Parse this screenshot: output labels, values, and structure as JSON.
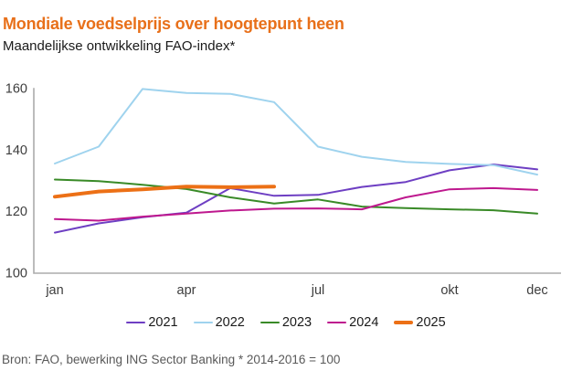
{
  "header": {
    "title": "Mondiale voedselprijs over hoogtepunt heen",
    "subtitle": "Maandelijkse ontwikkeling FAO-index*"
  },
  "footer": {
    "source": "Bron: FAO, bewerking ING Sector Banking * 2014-2016 = 100"
  },
  "colors": {
    "title": "#E8701A",
    "axis": "#ABABAB",
    "tick_text": "#3D3D3D",
    "footer_text": "#595959",
    "background": "#FFFFFF"
  },
  "chart_data": {
    "type": "line",
    "title": "Mondiale voedselprijs over hoogtepunt heen",
    "subtitle": "Maandelijkse ontwikkeling FAO-index*",
    "xlabel": "",
    "ylabel": "",
    "x": [
      "jan",
      "feb",
      "mrt",
      "apr",
      "mei",
      "jun",
      "jul",
      "aug",
      "sep",
      "okt",
      "nov",
      "dec"
    ],
    "x_tick_labels_shown": [
      "jan",
      "apr",
      "jul",
      "okt",
      "dec"
    ],
    "ylim": [
      100,
      160
    ],
    "yticks": [
      100,
      120,
      140,
      160
    ],
    "grid": false,
    "legend_position": "bottom",
    "series": [
      {
        "name": "2021",
        "color": "#6E3FC3",
        "width": 2,
        "values": [
          113.0,
          116.0,
          118.0,
          119.5,
          127.5,
          125.0,
          125.3,
          127.9,
          129.5,
          133.3,
          135.2,
          133.6
        ]
      },
      {
        "name": "2022",
        "color": "#9FD3EE",
        "width": 2,
        "values": [
          135.5,
          141.0,
          159.8,
          158.5,
          158.2,
          155.5,
          141.0,
          137.7,
          136.0,
          135.4,
          135.0,
          131.9
        ]
      },
      {
        "name": "2023",
        "color": "#398A27",
        "width": 2,
        "values": [
          130.3,
          129.8,
          128.6,
          127.2,
          124.5,
          122.5,
          123.8,
          121.5,
          121.0,
          120.6,
          120.3,
          119.2
        ]
      },
      {
        "name": "2024",
        "color": "#BE188E",
        "width": 2,
        "values": [
          117.4,
          116.9,
          118.2,
          119.2,
          120.2,
          120.8,
          120.9,
          120.6,
          124.5,
          127.1,
          127.5,
          126.9
        ]
      },
      {
        "name": "2025",
        "color": "#EC7016",
        "width": 4,
        "values": [
          124.7,
          126.4,
          127.1,
          128.0,
          127.8,
          128.0
        ]
      }
    ]
  }
}
